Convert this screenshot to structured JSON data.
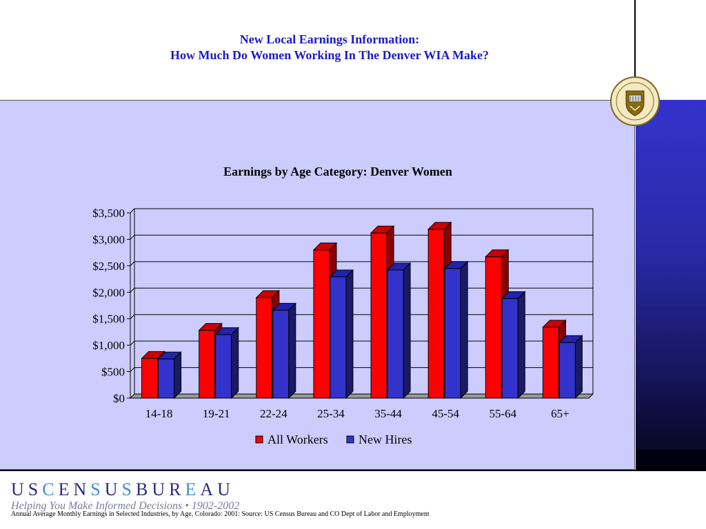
{
  "page": {
    "title_line1": "New Local Earnings Information:",
    "title_line2": "How Much Do Women Working In The Denver WIA Make?",
    "logo": "USCENSUSBUREAU",
    "tagline": "Helping You Make Informed Decisions • 1902-2002",
    "footnote": "Annual Average Monthly Earnings in Selected Industries, by Age, Colorado:  2001: Source: US Census Bureau and CO Dept of Labor and Employment"
  },
  "colors": {
    "title": "#1a1acc",
    "panel": "#ccccff",
    "all_workers": "#ff0000",
    "new_hires": "#3333cc"
  },
  "chart_data": {
    "type": "bar",
    "title": "Earnings by Age Category: Denver Women",
    "xlabel": "",
    "ylabel": "",
    "categories": [
      "14-18",
      "19-21",
      "22-24",
      "25-34",
      "35-44",
      "45-54",
      "55-64",
      "65+"
    ],
    "series": [
      {
        "name": "All Workers",
        "values": [
          750,
          1280,
          1900,
          2800,
          3120,
          3190,
          2670,
          1340
        ]
      },
      {
        "name": "New Hires",
        "values": [
          740,
          1200,
          1660,
          2290,
          2420,
          2450,
          1880,
          1050
        ]
      }
    ],
    "ylim": [
      0,
      3500
    ],
    "yticks": [
      0,
      500,
      1000,
      1500,
      2000,
      2500,
      3000,
      3500
    ],
    "ytick_labels": [
      "$0",
      "$500",
      "$1,000",
      "$1,500",
      "$2,000",
      "$2,500",
      "$3,000",
      "$3,500"
    ],
    "grid": true,
    "legend": "bottom"
  }
}
